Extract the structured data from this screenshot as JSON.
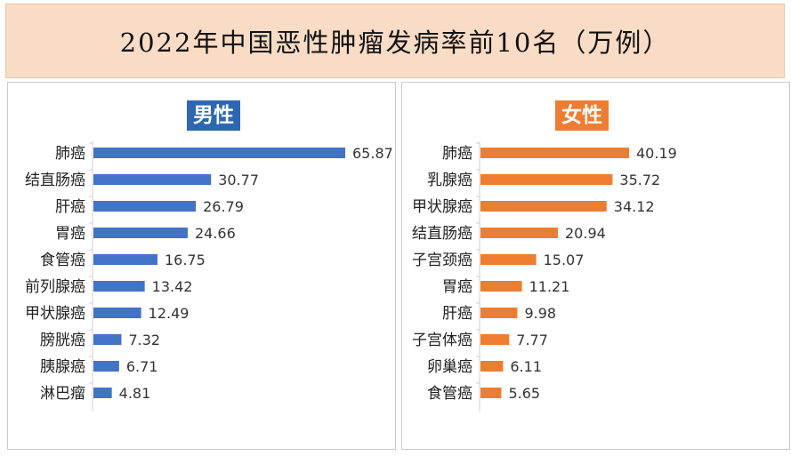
{
  "title": "2022年中国恶性肿瘤发病率前10名（万例）",
  "colors": {
    "male": "#4472c4",
    "female": "#ed7d31",
    "title_male": "#2e67b1",
    "title_female": "#ed7d31"
  },
  "chart_data": [
    {
      "type": "bar",
      "orientation": "horizontal",
      "title": "男性",
      "categories": [
        "肺癌",
        "结直肠癌",
        "肝癌",
        "胃癌",
        "食管癌",
        "前列腺癌",
        "甲状腺癌",
        "膀胱癌",
        "胰腺癌",
        "淋巴瘤"
      ],
      "values": [
        65.87,
        30.77,
        26.79,
        24.66,
        16.75,
        13.42,
        12.49,
        7.32,
        6.71,
        4.81
      ],
      "labels": [
        "65.87",
        "30.77",
        "26.79",
        "24.66",
        "16.75",
        "13.42",
        "12.49",
        "7.32",
        "6.71",
        "4.81"
      ],
      "xlim": [
        0,
        65.87
      ],
      "grid": false,
      "data_labels": true
    },
    {
      "type": "bar",
      "orientation": "horizontal",
      "title": "女性",
      "categories": [
        "肺癌",
        "乳腺癌",
        "甲状腺癌",
        "结直肠癌",
        "子宫颈癌",
        "胃癌",
        "肝癌",
        "子宫体癌",
        "卵巢癌",
        "食管癌"
      ],
      "values": [
        40.19,
        35.72,
        34.12,
        20.94,
        15.07,
        11.21,
        9.98,
        7.77,
        6.11,
        5.65
      ],
      "labels": [
        "40.19",
        "35.72",
        "34.12",
        "20.94",
        "15.07",
        "11.21",
        "9.98",
        "7.77",
        "6.11",
        "5.65"
      ],
      "xlim": [
        0,
        40.19
      ],
      "grid": false,
      "data_labels": true
    }
  ]
}
